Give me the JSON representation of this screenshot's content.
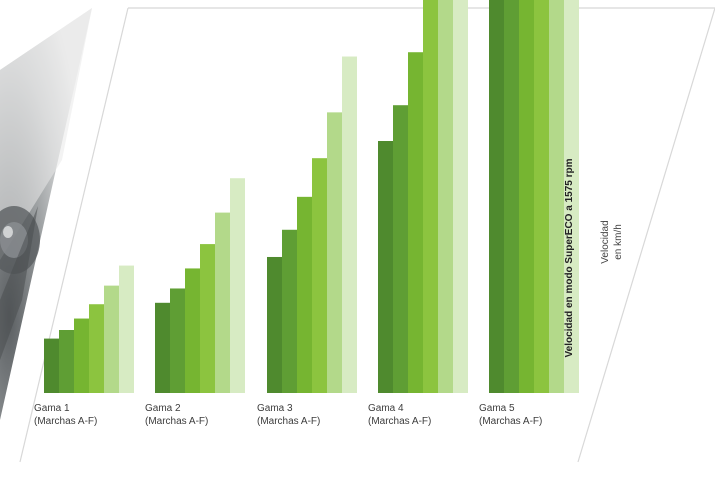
{
  "chart_data": {
    "type": "bar",
    "categories": [
      {
        "line1": "Gama 1",
        "line2": "(Marchas A-F)"
      },
      {
        "line1": "Gama 2",
        "line2": "(Marchas A-F)"
      },
      {
        "line1": "Gama 3",
        "line2": "(Marchas A-F)"
      },
      {
        "line1": "Gama 4",
        "line2": "(Marchas A-F)"
      },
      {
        "line1": "Gama 5",
        "line2": "(Marchas A-F)"
      }
    ],
    "series": [
      {
        "values": [
          3.8,
          6.3,
          9.5,
          17.6,
          34.5
        ]
      },
      {
        "values": [
          4.4,
          7.3,
          11.4,
          20.1,
          41.3
        ]
      },
      {
        "values": [
          5.2,
          8.7,
          13.7,
          23.8,
          48.9
        ]
      },
      {
        "values": [
          6.2,
          10.4,
          16.4,
          28.3,
          56.8
        ]
      },
      {
        "values": [
          7.5,
          12.6,
          19.6,
          33.8,
          56.8
        ]
      },
      {
        "values": [
          8.9,
          15.0,
          23.5,
          40.4,
          56.8
        ]
      }
    ],
    "series_colors": [
      "#4f8a2e",
      "#5f9e34",
      "#76b531",
      "#8cc43f",
      "#b3d98a",
      "#d7ebc3"
    ],
    "ylabel": "Velocidad en modo SuperECO a 1575 rpm",
    "unit_label": {
      "line1": "Velocidad",
      "line2": "en km/h"
    },
    "ylim": [
      0,
      60
    ],
    "grid": false,
    "legend": "none"
  },
  "theme": {
    "frame_color": "#d8d8d8"
  }
}
